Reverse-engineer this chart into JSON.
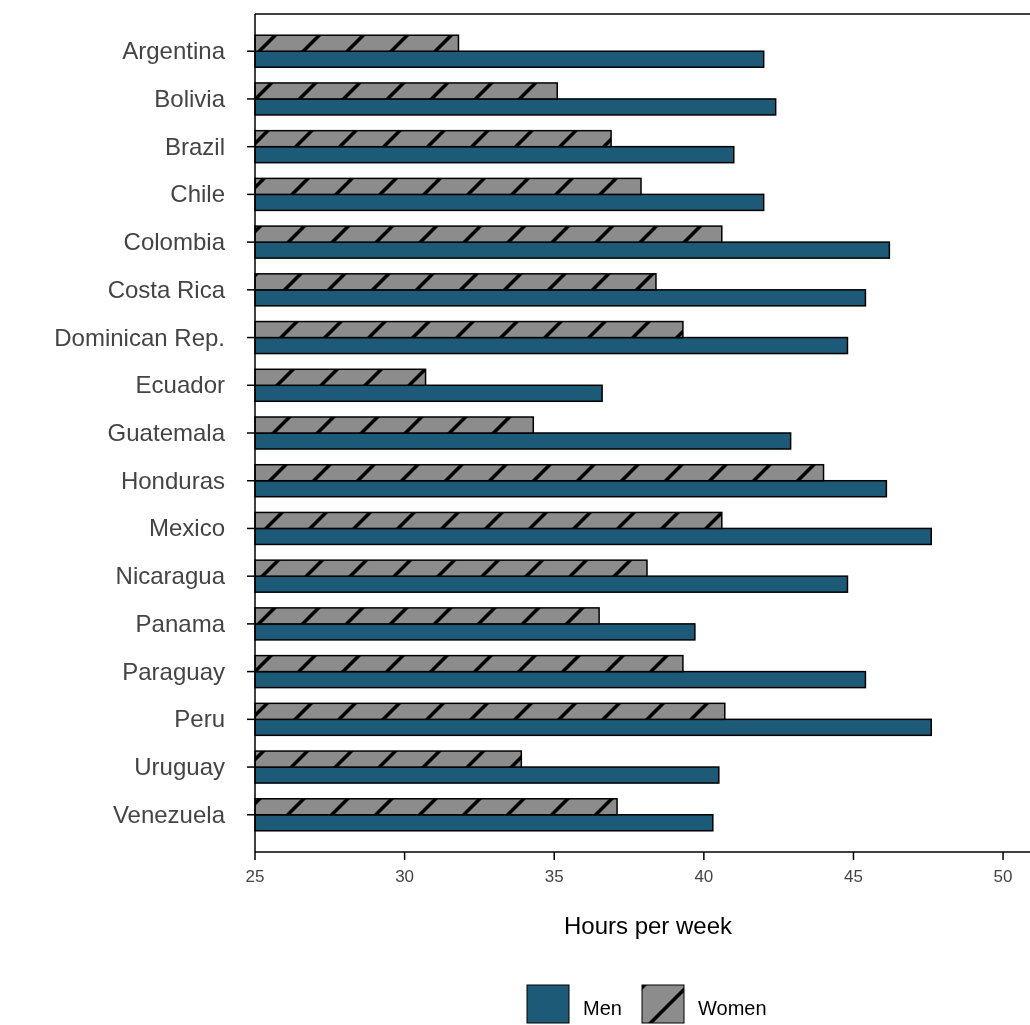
{
  "chart_data": {
    "type": "bar",
    "orientation": "horizontal",
    "xlabel": "Hours per week",
    "categories": [
      "Argentina",
      "Bolivia",
      "Brazil",
      "Chile",
      "Colombia",
      "Costa Rica",
      "Dominican Rep.",
      "Ecuador",
      "Guatemala",
      "Honduras",
      "Mexico",
      "Nicaragua",
      "Panama",
      "Paraguay",
      "Peru",
      "Uruguay",
      "Venezuela"
    ],
    "series": [
      {
        "name": "Men",
        "color": "#1d5a78",
        "values": [
          42.0,
          42.4,
          41.0,
          42.0,
          46.2,
          45.4,
          44.8,
          36.6,
          42.9,
          46.1,
          47.6,
          44.8,
          39.7,
          45.4,
          47.6,
          40.5,
          40.3
        ]
      },
      {
        "name": "Women",
        "color": "#8c8c8c",
        "values": [
          31.8,
          35.1,
          36.9,
          37.9,
          40.6,
          38.4,
          39.3,
          30.7,
          34.3,
          44.0,
          40.6,
          38.1,
          36.5,
          39.3,
          40.7,
          33.9,
          37.1
        ]
      }
    ],
    "xlim": [
      25,
      50.9
    ],
    "xticks": [
      25,
      30,
      35,
      40,
      45,
      50
    ],
    "grid": false,
    "legend": "bottom"
  }
}
